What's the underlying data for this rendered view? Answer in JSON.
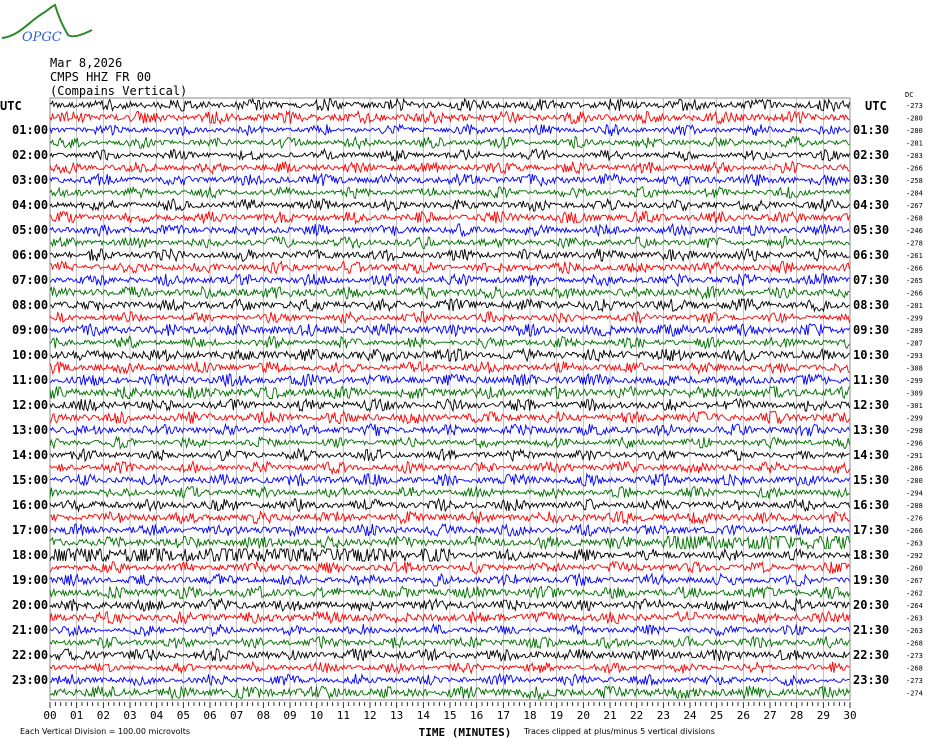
{
  "header": {
    "logo_text": "OPGC",
    "date": "Mar 8,2026",
    "station": "CMPS HHZ FR 00",
    "site": "(Compains Vertical)"
  },
  "chart_data": {
    "type": "line",
    "xlabel": "TIME (MINUTES)",
    "xlim": [
      0,
      30
    ],
    "x_ticks": [
      "00",
      "01",
      "02",
      "03",
      "04",
      "05",
      "06",
      "07",
      "08",
      "09",
      "10",
      "11",
      "12",
      "13",
      "14",
      "15",
      "16",
      "17",
      "18",
      "19",
      "20",
      "21",
      "22",
      "23",
      "24",
      "25",
      "26",
      "27",
      "28",
      "29",
      "30"
    ],
    "left_axis_title": "UTC",
    "right_axis_title": "UTC",
    "dc_title": "DC",
    "left_labels": [
      "01:00",
      "02:00",
      "03:00",
      "04:00",
      "05:00",
      "06:00",
      "07:00",
      "08:00",
      "09:00",
      "10:00",
      "11:00",
      "12:00",
      "13:00",
      "14:00",
      "15:00",
      "16:00",
      "17:00",
      "18:00",
      "19:00",
      "20:00",
      "21:00",
      "22:00",
      "23:00"
    ],
    "right_labels": [
      "01:30",
      "02:30",
      "03:30",
      "04:30",
      "05:30",
      "06:30",
      "07:30",
      "08:30",
      "09:30",
      "10:30",
      "11:30",
      "12:30",
      "13:30",
      "14:30",
      "15:30",
      "16:30",
      "17:30",
      "18:30",
      "19:30",
      "20:30",
      "21:30",
      "22:30",
      "23:30"
    ],
    "dc_offsets": [
      "-273",
      "-280",
      "-280",
      "-281",
      "-283",
      "-266",
      "-258",
      "-284",
      "-267",
      "-268",
      "-246",
      "-278",
      "-261",
      "-266",
      "-265",
      "-266",
      "-281",
      "-299",
      "-289",
      "-287",
      "-293",
      "-308",
      "-299",
      "-309",
      "-301",
      "-299",
      "-298",
      "-296",
      "-291",
      "-286",
      "-280",
      "-294",
      "-288",
      "-276",
      "-266",
      "-263",
      "-292",
      "-260",
      "-267",
      "-262",
      "-264",
      "-263",
      "-263",
      "-268",
      "-273",
      "-268",
      "-273",
      "-274"
    ],
    "trace_colors": [
      "#000000",
      "#ff0000",
      "#0000ff",
      "#007000"
    ],
    "rows_per_day": 48,
    "minutes_per_row": 30,
    "grid": "vertical every minute"
  },
  "footer": {
    "scale_note": "Each Vertical Division =  100.00 microvolts",
    "clip_note": "Traces clipped at plus/minus 5 vertical divisions"
  }
}
